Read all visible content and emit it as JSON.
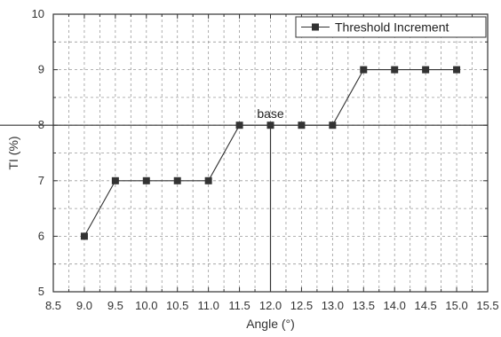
{
  "chart_data": {
    "type": "line",
    "title": "",
    "xlabel": "Angle (°)",
    "ylabel": "TI (%)",
    "xlim": [
      8.5,
      15.5
    ],
    "ylim": [
      5,
      10
    ],
    "x_ticks": [
      "8.5",
      "9.0",
      "9.5",
      "10.0",
      "10.5",
      "11.0",
      "11.5",
      "12.0",
      "12.5",
      "13.0",
      "13.5",
      "14.0",
      "14.5",
      "15.0",
      "15.5"
    ],
    "y_ticks": [
      "5",
      "6",
      "7",
      "8",
      "9",
      "10"
    ],
    "grid": true,
    "legend_position": "top-right",
    "series": [
      {
        "name": "Threshold Increment",
        "x": [
          9.0,
          9.5,
          10.0,
          10.5,
          11.0,
          11.5,
          12.0,
          12.5,
          13.0,
          13.5,
          14.0,
          14.5,
          15.0
        ],
        "values": [
          6,
          7,
          7,
          7,
          7,
          8,
          8,
          8,
          8,
          9,
          9,
          9,
          9
        ],
        "marker": "square",
        "color": "#333333"
      }
    ],
    "annotations": [
      {
        "text": "base",
        "x": 12.0,
        "y": 8
      }
    ],
    "reference_lines": {
      "horizontal_y": 8,
      "vertical_x": 12.0
    }
  }
}
